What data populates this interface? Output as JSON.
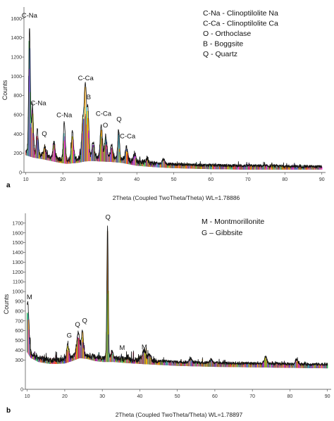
{
  "chart_data": [
    {
      "type": "line",
      "panel": "a",
      "xlabel": "2Theta (Coupled TwoTheta/Theta) WL=1.78886",
      "ylabel": "Counts",
      "xlim": [
        9.5,
        91
      ],
      "ylim": [
        0,
        1720
      ],
      "xticks": [
        10,
        20,
        30,
        40,
        50,
        60,
        70,
        80,
        90
      ],
      "yticks": [
        0,
        200,
        400,
        600,
        800,
        1000,
        1200,
        1400,
        1600
      ],
      "legend": [
        "C-Na - Clinoptilolite Na",
        "C-Ca - Clinoptilolite Ca",
        "O - Orthoclase",
        "B - Boggsite",
        "Q - Quartz"
      ],
      "legend_position": "top-right",
      "baseline": [
        [
          10,
          220
        ],
        [
          12,
          195
        ],
        [
          15,
          175
        ],
        [
          18,
          150
        ],
        [
          21,
          130
        ],
        [
          24,
          140
        ],
        [
          26,
          155
        ],
        [
          28,
          160
        ],
        [
          30,
          155
        ],
        [
          33,
          150
        ],
        [
          36,
          140
        ],
        [
          40,
          110
        ],
        [
          45,
          95
        ],
        [
          50,
          85
        ],
        [
          60,
          75
        ],
        [
          70,
          70
        ],
        [
          80,
          65
        ],
        [
          90,
          60
        ]
      ],
      "peaks": [
        {
          "x": 11.0,
          "y": 1500,
          "w": 0.22
        },
        {
          "x": 11.8,
          "y": 680,
          "w": 0.25
        },
        {
          "x": 13.1,
          "y": 450,
          "w": 0.25
        },
        {
          "x": 15.1,
          "y": 270,
          "w": 0.3
        },
        {
          "x": 17.6,
          "y": 320,
          "w": 0.25
        },
        {
          "x": 20.4,
          "y": 520,
          "w": 0.25
        },
        {
          "x": 22.6,
          "y": 420,
          "w": 0.3
        },
        {
          "x": 25.4,
          "y": 520,
          "w": 0.3
        },
        {
          "x": 26.1,
          "y": 910,
          "w": 0.3
        },
        {
          "x": 26.8,
          "y": 640,
          "w": 0.25
        },
        {
          "x": 28.2,
          "y": 330,
          "w": 0.3
        },
        {
          "x": 30.4,
          "y": 490,
          "w": 0.3
        },
        {
          "x": 31.6,
          "y": 390,
          "w": 0.3
        },
        {
          "x": 33.2,
          "y": 280,
          "w": 0.3
        },
        {
          "x": 35.1,
          "y": 420,
          "w": 0.25
        },
        {
          "x": 37.2,
          "y": 260,
          "w": 0.3
        },
        {
          "x": 39.4,
          "y": 200,
          "w": 0.3
        },
        {
          "x": 42.8,
          "y": 150,
          "w": 0.35
        },
        {
          "x": 47.2,
          "y": 140,
          "w": 0.35
        }
      ],
      "annotations": [
        {
          "text": "C-Na",
          "x": 11.0,
          "y": 1610
        },
        {
          "text": "C-Na",
          "x": 13.4,
          "y": 700
        },
        {
          "text": "Q",
          "x": 15.0,
          "y": 380
        },
        {
          "text": "C-Na",
          "x": 20.4,
          "y": 575
        },
        {
          "text": "C-Ca",
          "x": 26.2,
          "y": 960
        },
        {
          "text": "B",
          "x": 27.0,
          "y": 760
        },
        {
          "text": "C-Ca",
          "x": 31.0,
          "y": 590
        },
        {
          "text": "O",
          "x": 31.5,
          "y": 470
        },
        {
          "text": "Q",
          "x": 35.2,
          "y": 530
        },
        {
          "text": "C-Ca",
          "x": 37.5,
          "y": 355
        }
      ]
    },
    {
      "type": "line",
      "panel": "b",
      "xlabel": "2Theta (Coupled TwoTheta/Theta) WL=1.78897",
      "ylabel": "Counts",
      "xlim": [
        9.5,
        91
      ],
      "ylim": [
        0,
        1800
      ],
      "xticks": [
        10,
        20,
        30,
        40,
        50,
        60,
        70,
        80,
        90
      ],
      "yticks": [
        0,
        300,
        400,
        500,
        600,
        700,
        800,
        900,
        1000,
        1100,
        1200,
        1300,
        1400,
        1500,
        1600,
        1700
      ],
      "legend": [
        "M - Montmorillonite",
        "G – Gibbsite"
      ],
      "legend_position": "top-right",
      "baseline": [
        [
          10,
          420
        ],
        [
          11,
          360
        ],
        [
          13,
          320
        ],
        [
          16,
          300
        ],
        [
          18,
          300
        ],
        [
          20,
          305
        ],
        [
          22,
          330
        ],
        [
          24,
          360
        ],
        [
          26,
          350
        ],
        [
          28,
          330
        ],
        [
          30,
          320
        ],
        [
          33,
          320
        ],
        [
          36,
          310
        ],
        [
          40,
          300
        ],
        [
          45,
          290
        ],
        [
          50,
          280
        ],
        [
          60,
          270
        ],
        [
          70,
          265
        ],
        [
          80,
          260
        ],
        [
          90,
          255
        ]
      ],
      "peaks": [
        {
          "x": 10.1,
          "y": 890,
          "w": 0.35
        },
        {
          "x": 20.8,
          "y": 470,
          "w": 0.3
        },
        {
          "x": 23.6,
          "y": 580,
          "w": 0.4
        },
        {
          "x": 24.7,
          "y": 610,
          "w": 0.25
        },
        {
          "x": 31.4,
          "y": 1650,
          "w": 0.18
        },
        {
          "x": 32.6,
          "y": 380,
          "w": 0.3
        },
        {
          "x": 36.8,
          "y": 330,
          "w": 0.3
        },
        {
          "x": 41.1,
          "y": 400,
          "w": 0.5
        },
        {
          "x": 42.6,
          "y": 360,
          "w": 0.35
        },
        {
          "x": 53.5,
          "y": 320,
          "w": 0.3
        },
        {
          "x": 59.0,
          "y": 310,
          "w": 0.3
        },
        {
          "x": 73.5,
          "y": 330,
          "w": 0.35
        },
        {
          "x": 81.8,
          "y": 310,
          "w": 0.3
        }
      ],
      "annotations": [
        {
          "text": "M",
          "x": 10.6,
          "y": 920
        },
        {
          "text": "G",
          "x": 21.2,
          "y": 530
        },
        {
          "text": "Q",
          "x": 23.4,
          "y": 640
        },
        {
          "text": "Q",
          "x": 25.3,
          "y": 680
        },
        {
          "text": "Q",
          "x": 31.5,
          "y": 1740
        },
        {
          "text": "M",
          "x": 35.3,
          "y": 405
        },
        {
          "text": "M",
          "x": 41.2,
          "y": 410
        }
      ]
    }
  ],
  "phase_colors": [
    "#e6194b",
    "#3cb44b",
    "#ffa500",
    "#4363d8",
    "#911eb4",
    "#f032e6",
    "#46c0c0",
    "#808080",
    "#9a6324",
    "#d4c400"
  ],
  "line_color": "#111111"
}
